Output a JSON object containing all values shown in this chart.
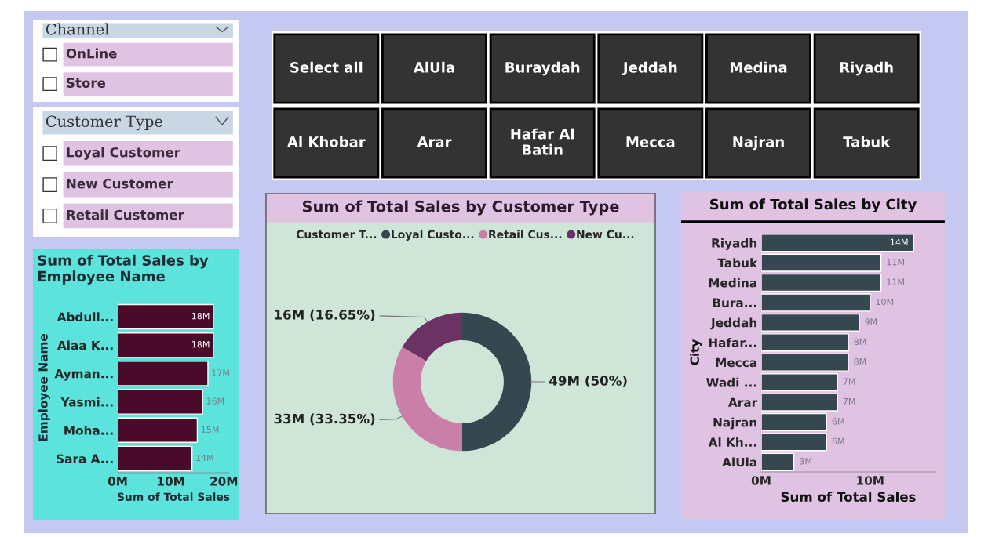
{
  "chart_data": [
    {
      "type": "other",
      "title": "Channel",
      "annotations": [
        "OnLine",
        "Store"
      ]
    },
    {
      "type": "other",
      "title": "Customer Type",
      "annotations": [
        "Loyal Customer",
        "New Customer",
        "Retail Customer"
      ]
    },
    {
      "type": "other",
      "annotations": [
        "Select all",
        "AlUla",
        "Buraydah",
        "Jeddah",
        "Medina",
        "Riyadh",
        "Al Khobar",
        "Arar",
        "Hafar Al\nBatin",
        "Mecca",
        "Najran",
        "Tabuk"
      ]
    },
    {
      "type": "bar",
      "orientation": "horizontal",
      "title": "Sum of Total Sales by\nEmployee Name",
      "xlabel": "Sum of Total Sales",
      "ylabel": "Employee Name",
      "categories": [
        "Abdull...",
        "Alaa K...",
        "Ayman...",
        "Yasmi...",
        "Moha...",
        "Sara A..."
      ],
      "values": [
        18,
        18,
        17,
        16,
        15,
        14
      ],
      "color": "#4a0a2a",
      "value_labels": [
        "18M",
        "18M",
        "17M",
        "16M",
        "15M",
        "14M"
      ],
      "xlim": [
        0,
        21
      ],
      "xticks": [
        {
          "value": 0,
          "label": "0M"
        },
        {
          "value": 10,
          "label": "10M"
        },
        {
          "value": 20,
          "label": "20M"
        }
      ]
    },
    {
      "type": "donut",
      "title": "Sum of Total Sales by Customer Type",
      "legend_title": "Customer T...",
      "legend": "top",
      "categories": [
        "Loyal Custo...",
        "Retail Cus...",
        "New Cu..."
      ],
      "values": [
        50,
        33.35,
        16.65
      ],
      "colors": [
        "#36474f",
        "#c97fa8",
        "#6b3264"
      ],
      "value_labels": [
        "49M (50%)",
        "33M (33.35%)",
        "16M (16.65%)"
      ]
    },
    {
      "type": "bar",
      "orientation": "horizontal",
      "title": "Sum of Total Sales by City",
      "xlabel": "Sum of Total Sales",
      "ylabel": "City",
      "categories": [
        "Riyadh",
        "Tabuk",
        "Medina",
        "Bura...",
        "Jeddah",
        "Hafar...",
        "Mecca",
        "Wadi ...",
        "Arar",
        "Najran",
        "Al Kh...",
        "AlUla"
      ],
      "values": [
        14,
        11,
        11,
        10,
        9,
        8,
        8,
        7,
        7,
        6,
        6,
        3
      ],
      "color": "#36474f",
      "value_labels": [
        "14M",
        "11M",
        "11M",
        "10M",
        "9M",
        "8M",
        "8M",
        "7M",
        "7M",
        "6M",
        "6M",
        "3M"
      ],
      "xlim": [
        0,
        16
      ],
      "xticks": [
        {
          "value": 0,
          "label": "0M"
        },
        {
          "value": 10,
          "label": "10M"
        }
      ]
    }
  ]
}
